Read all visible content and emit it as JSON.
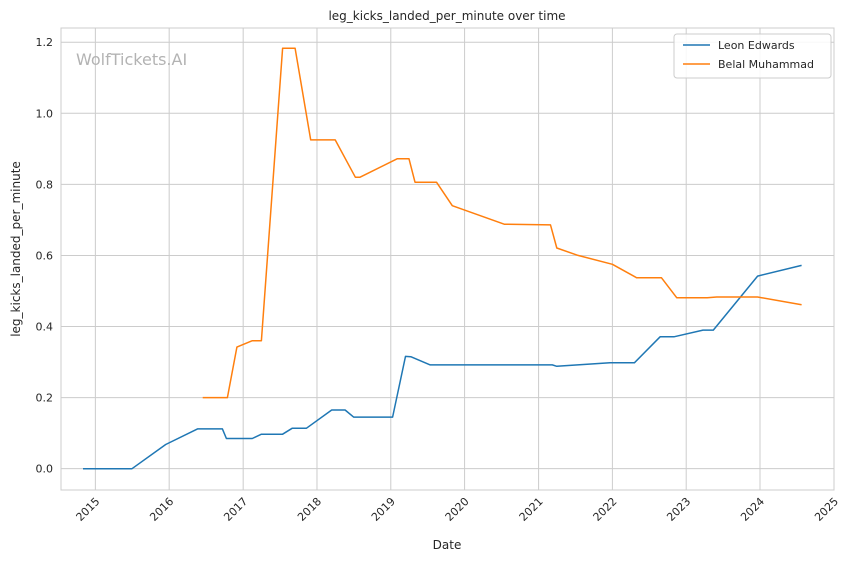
{
  "chart_data": {
    "type": "line",
    "title": "leg_kicks_landed_per_minute over time",
    "xlabel": "Date",
    "ylabel": "leg_kicks_landed_per_minute",
    "watermark": "WolfTickets.AI",
    "xlim": [
      "2014-07-15",
      "2025-01-01"
    ],
    "ylim": [
      -0.06,
      1.24
    ],
    "x_ticks": [
      "2015",
      "2016",
      "2017",
      "2018",
      "2019",
      "2020",
      "2021",
      "2022",
      "2023",
      "2024",
      "2025"
    ],
    "y_ticks": [
      "0.0",
      "0.2",
      "0.4",
      "0.6",
      "0.8",
      "1.0",
      "1.2"
    ],
    "grid": true,
    "legend_position": "top-right",
    "series": [
      {
        "name": "Leon Edwards",
        "color": "#1f77b4",
        "points": [
          [
            "2014-11-01",
            0.0
          ],
          [
            "2015-07-01",
            0.0
          ],
          [
            "2015-12-15",
            0.068
          ],
          [
            "2016-05-20",
            0.112
          ],
          [
            "2016-09-20",
            0.112
          ],
          [
            "2016-10-10",
            0.085
          ],
          [
            "2017-02-15",
            0.085
          ],
          [
            "2017-04-01",
            0.097
          ],
          [
            "2017-07-15",
            0.097
          ],
          [
            "2017-09-01",
            0.114
          ],
          [
            "2017-11-10",
            0.114
          ],
          [
            "2018-03-15",
            0.165
          ],
          [
            "2018-05-20",
            0.165
          ],
          [
            "2018-07-01",
            0.145
          ],
          [
            "2019-01-10",
            0.145
          ],
          [
            "2019-03-15",
            0.316
          ],
          [
            "2019-04-10",
            0.315
          ],
          [
            "2019-07-15",
            0.292
          ],
          [
            "2021-03-10",
            0.292
          ],
          [
            "2021-04-01",
            0.288
          ],
          [
            "2021-06-15",
            0.291
          ],
          [
            "2021-12-20",
            0.298
          ],
          [
            "2022-04-20",
            0.298
          ],
          [
            "2022-08-25",
            0.371
          ],
          [
            "2022-11-01",
            0.371
          ],
          [
            "2023-03-25",
            0.39
          ],
          [
            "2023-05-15",
            0.39
          ],
          [
            "2023-12-20",
            0.542
          ],
          [
            "2024-07-25",
            0.572
          ]
        ]
      },
      {
        "name": "Belal Muhammad",
        "color": "#ff7f0e",
        "points": [
          [
            "2016-06-15",
            0.2
          ],
          [
            "2016-10-15",
            0.2
          ],
          [
            "2016-12-01",
            0.342
          ],
          [
            "2017-02-15",
            0.36
          ],
          [
            "2017-04-01",
            0.36
          ],
          [
            "2017-07-15",
            1.183
          ],
          [
            "2017-09-15",
            1.183
          ],
          [
            "2017-12-01",
            0.925
          ],
          [
            "2018-04-01",
            0.925
          ],
          [
            "2018-07-10",
            0.82
          ],
          [
            "2018-08-01",
            0.82
          ],
          [
            "2019-02-01",
            0.872
          ],
          [
            "2019-04-01",
            0.872
          ],
          [
            "2019-05-01",
            0.806
          ],
          [
            "2019-08-15",
            0.806
          ],
          [
            "2019-11-01",
            0.74
          ],
          [
            "2020-07-15",
            0.688
          ],
          [
            "2021-03-01",
            0.686
          ],
          [
            "2021-04-01",
            0.621
          ],
          [
            "2021-07-15",
            0.6
          ],
          [
            "2022-01-01",
            0.575
          ],
          [
            "2022-05-01",
            0.537
          ],
          [
            "2022-09-01",
            0.537
          ],
          [
            "2022-11-15",
            0.481
          ],
          [
            "2023-04-15",
            0.481
          ],
          [
            "2023-06-01",
            0.483
          ],
          [
            "2023-12-20",
            0.483
          ],
          [
            "2024-07-25",
            0.461
          ]
        ]
      }
    ]
  }
}
